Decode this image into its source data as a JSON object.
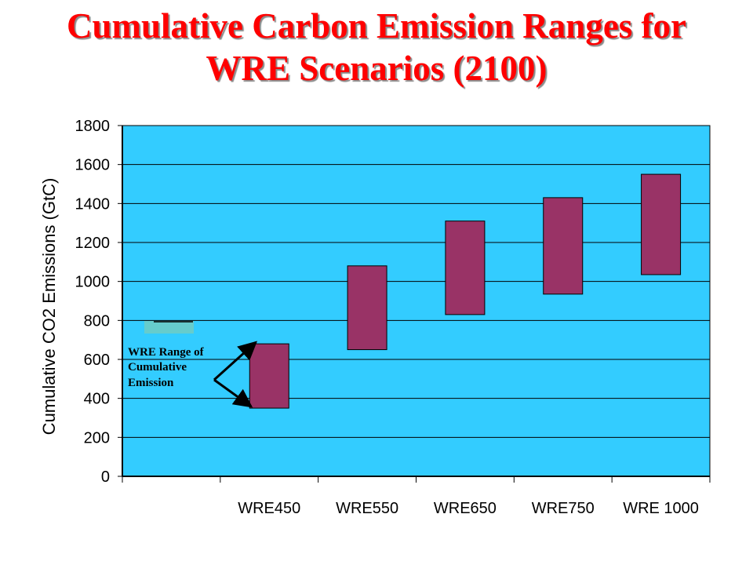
{
  "title_lines": [
    "Cumulative Carbon Emission Ranges for",
    "WRE Scenarios (2100)"
  ],
  "colors": {
    "title": "#ff0000",
    "plot_background": "#33ccff",
    "bar_fill": "#993366",
    "legend_swatch": "#66cccc"
  },
  "chart_data": {
    "type": "bar",
    "subtype": "floating-range",
    "title": "Cumulative Carbon Emission Ranges for WRE Scenarios (2100)",
    "ylabel": "Cumulative CO2 Emissions (GtC)",
    "ylim": [
      0,
      1800
    ],
    "yticks": [
      0,
      200,
      400,
      600,
      800,
      1000,
      1200,
      1400,
      1600,
      1800
    ],
    "grid": true,
    "categories": [
      "",
      "WRE450",
      "WRE550",
      "WRE650",
      "WRE750",
      "WRE 1000"
    ],
    "ranges": [
      null,
      {
        "low": 350,
        "high": 680
      },
      {
        "low": 650,
        "high": 1080
      },
      {
        "low": 830,
        "high": 1310
      },
      {
        "low": 935,
        "high": 1430
      },
      {
        "low": 1035,
        "high": 1550
      }
    ],
    "annotation": {
      "lines": [
        "WRE Range of",
        "Cumulative",
        "Emission"
      ],
      "target_category": "WRE450"
    }
  }
}
